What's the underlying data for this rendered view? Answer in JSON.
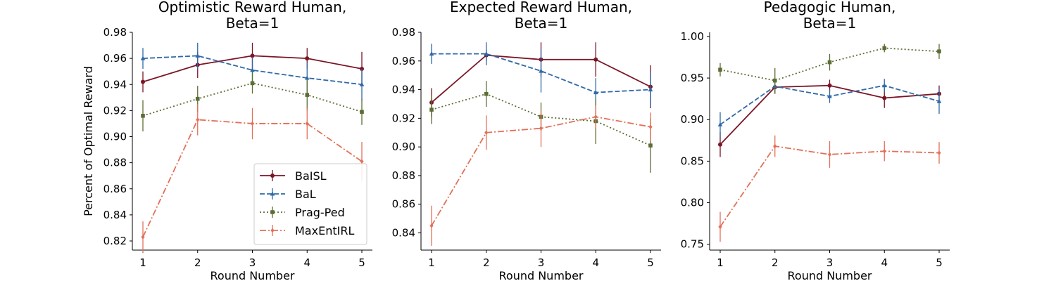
{
  "chart_data": [
    {
      "type": "line",
      "title_lines": [
        "Optimistic Reward Human,",
        "Beta=1"
      ],
      "xlabel": "Round Number",
      "ylabel": "Percent of Optimal Reward",
      "x": [
        1,
        2,
        3,
        4,
        5
      ],
      "xticks": [
        "1",
        "2",
        "3",
        "4",
        "5"
      ],
      "ylim": [
        0.813,
        0.98
      ],
      "yticks": [
        "0.82",
        "0.84",
        "0.86",
        "0.88",
        "0.90",
        "0.92",
        "0.94",
        "0.96",
        "0.98"
      ],
      "ytick_values": [
        0.82,
        0.84,
        0.86,
        0.88,
        0.9,
        0.92,
        0.94,
        0.96,
        0.98
      ],
      "legend_position": "lower-right",
      "series": [
        {
          "name": "BaISL",
          "color": "#7b1526",
          "style": "solid",
          "marker": "circle",
          "values": [
            0.942,
            0.955,
            0.962,
            0.96,
            0.952
          ],
          "errors": [
            0.008,
            0.01,
            0.01,
            0.008,
            0.013
          ]
        },
        {
          "name": "BaL",
          "color": "#2f69a8",
          "style": "dashed",
          "marker": "triangle",
          "values": [
            0.96,
            0.962,
            0.951,
            0.945,
            0.94
          ],
          "errors": [
            0.008,
            0.01,
            0.01,
            0.012,
            0.012
          ]
        },
        {
          "name": "Prag-Ped",
          "color": "#5c6e35",
          "style": "dotted",
          "marker": "square",
          "values": [
            0.916,
            0.929,
            0.941,
            0.932,
            0.919
          ],
          "errors": [
            0.012,
            0.01,
            0.008,
            0.012,
            0.01
          ]
        },
        {
          "name": "MaxEntIRL",
          "color": "#e37059",
          "style": "dashdot",
          "marker": "diamond",
          "values": [
            0.823,
            0.913,
            0.91,
            0.91,
            0.881
          ],
          "errors": [
            0.012,
            0.012,
            0.012,
            0.012,
            0.015
          ]
        }
      ]
    },
    {
      "type": "line",
      "title_lines": [
        "Expected Reward Human,",
        "Beta=1"
      ],
      "xlabel": "Round Number",
      "ylabel": "",
      "x": [
        1,
        2,
        3,
        4,
        5
      ],
      "xticks": [
        "1",
        "2",
        "3",
        "4",
        "5"
      ],
      "ylim": [
        0.828,
        0.98
      ],
      "yticks": [
        "0.84",
        "0.86",
        "0.88",
        "0.90",
        "0.92",
        "0.94",
        "0.96",
        "0.98"
      ],
      "ytick_values": [
        0.84,
        0.86,
        0.88,
        0.9,
        0.92,
        0.94,
        0.96,
        0.98
      ],
      "legend_position": "none",
      "series": [
        {
          "name": "BaISL",
          "color": "#7b1526",
          "style": "solid",
          "marker": "circle",
          "values": [
            0.931,
            0.964,
            0.961,
            0.961,
            0.942
          ],
          "errors": [
            0.01,
            0.004,
            0.012,
            0.012,
            0.015
          ]
        },
        {
          "name": "BaL",
          "color": "#2f69a8",
          "style": "dashed",
          "marker": "triangle",
          "values": [
            0.965,
            0.965,
            0.953,
            0.938,
            0.94
          ],
          "errors": [
            0.007,
            0.008,
            0.015,
            0.01,
            0.012
          ]
        },
        {
          "name": "Prag-Ped",
          "color": "#5c6e35",
          "style": "dotted",
          "marker": "square",
          "values": [
            0.926,
            0.937,
            0.921,
            0.918,
            0.901
          ],
          "errors": [
            0.01,
            0.009,
            0.01,
            0.016,
            0.019
          ]
        },
        {
          "name": "MaxEntIRL",
          "color": "#e37059",
          "style": "dashdot",
          "marker": "diamond",
          "values": [
            0.845,
            0.91,
            0.913,
            0.921,
            0.914
          ],
          "errors": [
            0.014,
            0.012,
            0.013,
            0.008,
            0.01
          ]
        }
      ]
    },
    {
      "type": "line",
      "title_lines": [
        "Pedagogic Human,",
        "Beta=1"
      ],
      "xlabel": "Round Number",
      "ylabel": "",
      "x": [
        1,
        2,
        3,
        4,
        5
      ],
      "xticks": [
        "1",
        "2",
        "3",
        "4",
        "5"
      ],
      "ylim": [
        0.743,
        1.005
      ],
      "yticks": [
        "0.75",
        "0.80",
        "0.85",
        "0.90",
        "0.95",
        "1.00"
      ],
      "ytick_values": [
        0.75,
        0.8,
        0.85,
        0.9,
        0.95,
        1.0
      ],
      "legend_position": "none",
      "series": [
        {
          "name": "BaISL",
          "color": "#7b1526",
          "style": "solid",
          "marker": "circle",
          "values": [
            0.87,
            0.939,
            0.941,
            0.926,
            0.931
          ],
          "errors": [
            0.015,
            0.008,
            0.007,
            0.012,
            0.01
          ]
        },
        {
          "name": "BaL",
          "color": "#2f69a8",
          "style": "dashed",
          "marker": "triangle",
          "values": [
            0.894,
            0.94,
            0.928,
            0.941,
            0.922
          ],
          "errors": [
            0.015,
            0.008,
            0.008,
            0.008,
            0.015
          ]
        },
        {
          "name": "Prag-Ped",
          "color": "#5c6e35",
          "style": "dotted",
          "marker": "square",
          "values": [
            0.96,
            0.947,
            0.969,
            0.986,
            0.982
          ],
          "errors": [
            0.008,
            0.015,
            0.01,
            0.005,
            0.009
          ]
        },
        {
          "name": "MaxEntIRL",
          "color": "#e37059",
          "style": "dashdot",
          "marker": "diamond",
          "values": [
            0.771,
            0.868,
            0.858,
            0.862,
            0.86
          ],
          "errors": [
            0.018,
            0.013,
            0.016,
            0.012,
            0.013
          ]
        }
      ]
    }
  ]
}
